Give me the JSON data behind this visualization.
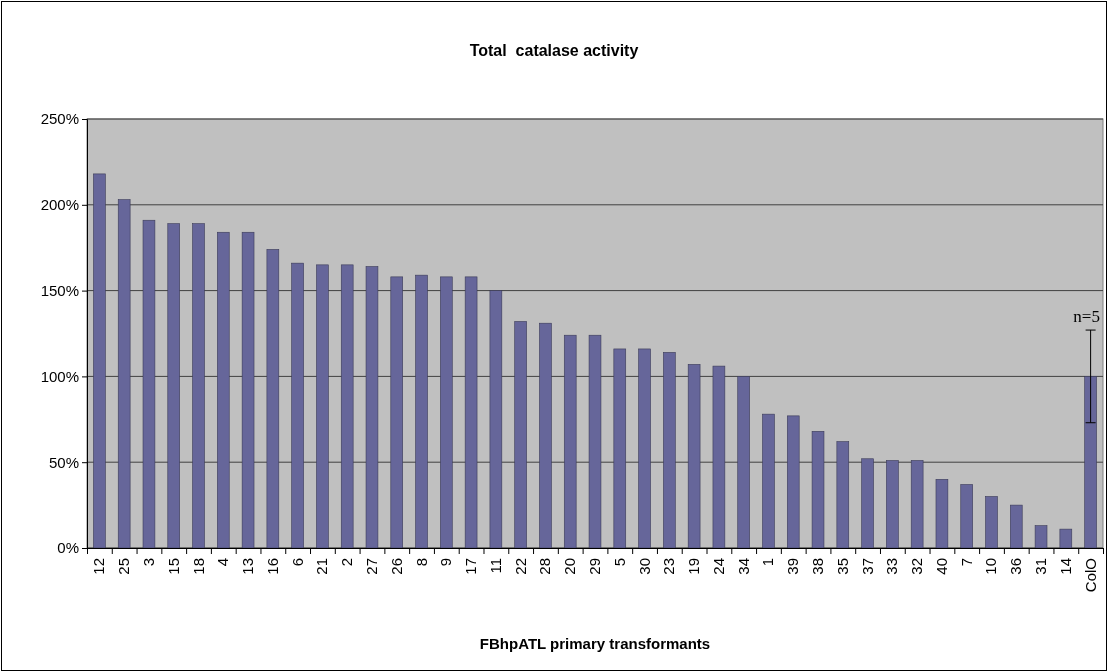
{
  "chart_data": {
    "type": "bar",
    "title": "Total  catalase activity",
    "xlabel": "FBhpATL primary transformants",
    "categories": [
      "12",
      "25",
      "3",
      "15",
      "18",
      "4",
      "13",
      "16",
      "6",
      "21",
      "2",
      "27",
      "26",
      "8",
      "9",
      "17",
      "11",
      "22",
      "28",
      "20",
      "29",
      "5",
      "30",
      "23",
      "19",
      "24",
      "34",
      "1",
      "39",
      "38",
      "35",
      "37",
      "33",
      "32",
      "40",
      "7",
      "10",
      "36",
      "31",
      "14",
      "ColO"
    ],
    "values": [
      218,
      203,
      191,
      189,
      189,
      184,
      184,
      174,
      166,
      165,
      165,
      164,
      158,
      159,
      158,
      158,
      150,
      132,
      131,
      124,
      124,
      116,
      116,
      114,
      107,
      106,
      100,
      78,
      77,
      68,
      62,
      52,
      51,
      51,
      40,
      37,
      30,
      25,
      13,
      11,
      100
    ],
    "errors": [
      null,
      null,
      null,
      null,
      null,
      null,
      null,
      null,
      null,
      null,
      null,
      null,
      null,
      null,
      null,
      null,
      null,
      null,
      null,
      null,
      null,
      null,
      null,
      null,
      null,
      null,
      null,
      null,
      null,
      null,
      null,
      null,
      null,
      null,
      null,
      null,
      null,
      null,
      null,
      null,
      27
    ],
    "color": "#66669a",
    "ylim": [
      0,
      250
    ],
    "yticks": [
      {
        "value": 0,
        "label": "0%"
      },
      {
        "value": 50,
        "label": "50%"
      },
      {
        "value": 100,
        "label": "100%"
      },
      {
        "value": 150,
        "label": "150%"
      },
      {
        "value": 200,
        "label": "200%"
      },
      {
        "value": 250,
        "label": "250%"
      }
    ],
    "grid": "y",
    "annotations": [
      {
        "text": "n=5",
        "x": "ColO",
        "y": 127
      }
    ]
  }
}
